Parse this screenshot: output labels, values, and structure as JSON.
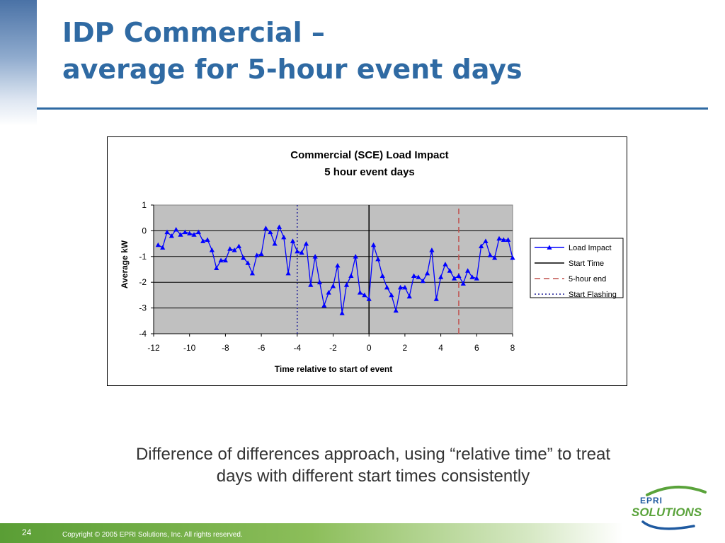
{
  "slide": {
    "title_line1": "IDP Commercial –",
    "title_line2": "average for 5-hour event days",
    "caption_line1": "Difference of differences approach, using “relative time” to treat",
    "caption_line2": "days with different start times consistently",
    "page_number": "24",
    "copyright": "Copyright © 2005 EPRI Solutions, Inc. All rights reserved.",
    "logo_text_top": "EPRI",
    "logo_text_bottom": "SOLUTIONS",
    "colors": {
      "title": "#2f6aa3",
      "footer": "#6aaa3f",
      "logo_green": "#5aa33b",
      "logo_blue": "#1f5aa0"
    }
  },
  "chart_data": {
    "type": "line",
    "title": "Commercial (SCE) Load Impact",
    "subtitle": "5 hour event days",
    "xlabel": "Time relative to start of event",
    "ylabel": "Average kW",
    "xlim": [
      -12,
      8
    ],
    "ylim": [
      -4,
      1
    ],
    "xticks": [
      "-12",
      "-10",
      "-8",
      "-6",
      "-4",
      "-2",
      "0",
      "2",
      "4",
      "6",
      "8"
    ],
    "yticks": [
      "1",
      "0",
      "-1",
      "-2",
      "-3",
      "-4"
    ],
    "grid": true,
    "plot_background": "#c0c0c0",
    "legend_position": "right",
    "series": [
      {
        "name": "Load Impact",
        "color": "#0000ff",
        "marker": "triangle",
        "x": [
          -11.75,
          -11.5,
          -11.25,
          -11,
          -10.75,
          -10.5,
          -10.25,
          -10,
          -9.75,
          -9.5,
          -9.25,
          -9,
          -8.75,
          -8.5,
          -8.25,
          -8,
          -7.75,
          -7.5,
          -7.25,
          -7,
          -6.75,
          -6.5,
          -6.25,
          -6,
          -5.75,
          -5.5,
          -5.25,
          -5,
          -4.75,
          -4.5,
          -4.25,
          -4,
          -3.75,
          -3.5,
          -3.25,
          -3,
          -2.75,
          -2.5,
          -2.25,
          -2,
          -1.75,
          -1.5,
          -1.25,
          -1,
          -0.75,
          -0.5,
          -0.25,
          0,
          0.25,
          0.5,
          0.75,
          1,
          1.25,
          1.5,
          1.75,
          2,
          2.25,
          2.5,
          2.75,
          3,
          3.25,
          3.5,
          3.75,
          4,
          4.25,
          4.5,
          4.75,
          5,
          5.25,
          5.5,
          5.75,
          6,
          6.25,
          6.5,
          6.75,
          7,
          7.25,
          7.5,
          7.75,
          8
        ],
        "y": [
          -0.55,
          -0.65,
          -0.05,
          -0.2,
          0.05,
          -0.15,
          -0.05,
          -0.1,
          -0.15,
          -0.05,
          -0.4,
          -0.35,
          -0.75,
          -1.45,
          -1.15,
          -1.15,
          -0.7,
          -0.75,
          -0.6,
          -1.05,
          -1.25,
          -1.65,
          -0.95,
          -0.9,
          0.1,
          -0.05,
          -0.5,
          0.15,
          -0.25,
          -1.65,
          -0.4,
          -0.8,
          -0.85,
          -0.5,
          -2.1,
          -1.0,
          -2.0,
          -2.9,
          -2.4,
          -2.15,
          -1.35,
          -3.2,
          -2.1,
          -1.75,
          -1.0,
          -2.4,
          -2.5,
          -2.65,
          -0.55,
          -1.1,
          -1.75,
          -2.2,
          -2.5,
          -3.1,
          -2.2,
          -2.2,
          -2.55,
          -1.75,
          -1.8,
          -1.95,
          -1.65,
          -0.75,
          -2.65,
          -1.8,
          -1.3,
          -1.55,
          -1.85,
          -1.75,
          -2.05,
          -1.55,
          -1.8,
          -1.85,
          -0.6,
          -0.4,
          -0.95,
          -1.05,
          -0.3,
          -0.35,
          -0.35,
          -1.05
        ]
      },
      {
        "name": "Start Time",
        "color": "#000000",
        "style": "solid",
        "x": [
          0,
          0
        ],
        "y": [
          -4,
          1
        ]
      },
      {
        "name": "5-hour end",
        "color": "#c0504d",
        "style": "dashed",
        "x": [
          5,
          5
        ],
        "y": [
          -4,
          1
        ]
      },
      {
        "name": "Start Flashing",
        "color": "#1f1f99",
        "style": "dotted",
        "x": [
          -4,
          -4
        ],
        "y": [
          -4,
          1
        ]
      }
    ]
  }
}
